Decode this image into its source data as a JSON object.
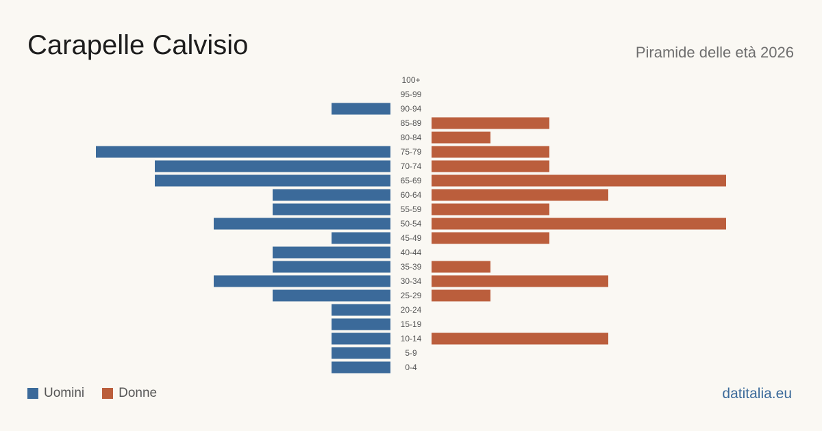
{
  "title": "Carapelle Calvisio",
  "subtitle": "Piramide delle età 2026",
  "source": "datitalia.eu",
  "legend": {
    "men_label": "Uomini",
    "women_label": "Donne"
  },
  "colors": {
    "men": "#3b6a9a",
    "women": "#bb5e3c",
    "background": "#faf8f3"
  },
  "chart_data": {
    "type": "bar",
    "orientation": "horizontal-pyramid",
    "categories": [
      "100+",
      "95-99",
      "90-94",
      "85-89",
      "80-84",
      "75-79",
      "70-74",
      "65-69",
      "60-64",
      "55-59",
      "50-54",
      "45-49",
      "40-44",
      "35-39",
      "30-34",
      "25-29",
      "20-24",
      "15-19",
      "10-14",
      "5-9",
      "0-4"
    ],
    "series": [
      {
        "name": "Uomini",
        "side": "left",
        "values": [
          0,
          0,
          1,
          0,
          0,
          5,
          4,
          4,
          2,
          2,
          3,
          1,
          2,
          2,
          3,
          2,
          1,
          1,
          1,
          1,
          1
        ]
      },
      {
        "name": "Donne",
        "side": "right",
        "values": [
          0,
          0,
          0,
          2,
          1,
          2,
          2,
          5,
          3,
          2,
          5,
          2,
          0,
          1,
          3,
          1,
          0,
          0,
          3,
          0,
          0
        ]
      }
    ],
    "xlim": [
      0,
      5
    ],
    "grid": false,
    "legend_position": "bottom-left"
  }
}
